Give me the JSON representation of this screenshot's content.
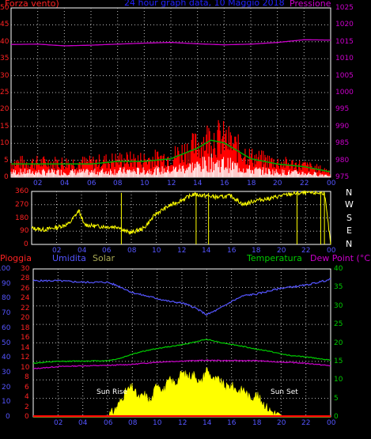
{
  "colors": {
    "bg": "#000000",
    "frame": "#ffffff",
    "grid": "#bfbfbf",
    "wind": "#ff0000",
    "wind_avg": "#00aa00",
    "wind_gust": "#ffffff",
    "pressure": "#cc00cc",
    "wind_dir": "#ffff00",
    "rain": "#ff0000",
    "humidity": "#5555ff",
    "solar": "#ffff00",
    "temperature": "#00cc00",
    "dewpoint": "#cc00cc",
    "left_axis_red": "#ff2222",
    "pressure_axis": "#cc00cc",
    "left_axis_blue": "#5555ff",
    "right_axis_green": "#00cc00",
    "x_axis": "#5555ff",
    "title": "#2222ff",
    "solar_label": "#aaaa55"
  },
  "header": {
    "left": "Forza vento)",
    "title": "24 hour graph data, 10 Maggio 2018",
    "right": "Pressione"
  },
  "lower_header": {
    "rain": "Pioggia",
    "humidity": "Umidita",
    "solar": "Solar",
    "temperature": "Temperatura",
    "dewpoint": "Dew Point (°C)"
  },
  "compass": [
    "N",
    "W",
    "S",
    "E",
    "N"
  ],
  "sun": {
    "rise": "Sun Rise",
    "set": "Sun Set"
  },
  "chart_data": [
    {
      "type": "line",
      "title": "24 hour graph data, 10 Maggio 2018",
      "x_ticks": [
        "02",
        "04",
        "06",
        "08",
        "10",
        "12",
        "14",
        "16",
        "18",
        "20",
        "22",
        "00"
      ],
      "y_left_ticks": [
        "0",
        "5",
        "10",
        "15",
        "20",
        "25",
        "30",
        "35",
        "40",
        "45",
        "50"
      ],
      "y_right_ticks": [
        "975",
        "980",
        "985",
        "990",
        "995",
        "1000",
        "1005",
        "1010",
        "1015",
        "1020",
        "1025"
      ],
      "ylim_left": [
        0,
        50
      ],
      "ylim_right": [
        975,
        1025
      ],
      "grid": true,
      "series": [
        {
          "name": "Forza vento",
          "axis": "left",
          "x": [
            0,
            2,
            4,
            6,
            8,
            10,
            12,
            13,
            14,
            15,
            16,
            17,
            18,
            20,
            22,
            24
          ],
          "values": [
            5,
            5,
            5,
            5,
            6,
            6,
            7,
            9,
            11,
            14,
            13,
            10,
            7,
            5,
            4,
            2
          ]
        },
        {
          "name": "Pressione",
          "axis": "right",
          "x": [
            0,
            2,
            4,
            6,
            8,
            10,
            12,
            14,
            16,
            18,
            20,
            22,
            24
          ],
          "values": [
            1014.2,
            1014.3,
            1013.8,
            1014.0,
            1014.3,
            1014.6,
            1014.8,
            1014.4,
            1014.1,
            1014.3,
            1014.8,
            1015.6,
            1015.5
          ]
        }
      ]
    },
    {
      "type": "line",
      "x_ticks": [
        "02",
        "04",
        "06",
        "08",
        "10",
        "12",
        "14",
        "16",
        "18",
        "20",
        "22",
        "00"
      ],
      "y_ticks": [
        "0",
        "90",
        "180",
        "270",
        "360"
      ],
      "ylim": [
        0,
        360
      ],
      "grid": true,
      "series": [
        {
          "name": "",
          "x": [
            0,
            1,
            2,
            3,
            3.8,
            4.2,
            5,
            6,
            7,
            7.5,
            8,
            9,
            10,
            11,
            12,
            13,
            14,
            15,
            16,
            17,
            18,
            19,
            20,
            21,
            22,
            23.5,
            24
          ],
          "values": [
            110,
            100,
            115,
            140,
            230,
            135,
            125,
            120,
            120,
            90,
            80,
            110,
            210,
            260,
            300,
            340,
            330,
            320,
            330,
            270,
            300,
            310,
            330,
            345,
            350,
            350,
            0
          ]
        }
      ]
    },
    {
      "type": "line",
      "x_ticks": [
        "02",
        "04",
        "06",
        "08",
        "10",
        "12",
        "14",
        "16",
        "18",
        "20",
        "22",
        "00"
      ],
      "y_left_ticks": [
        "0",
        "10",
        "20",
        "30",
        "40",
        "50",
        "60",
        "70",
        "80",
        "90",
        "100"
      ],
      "y_left2_ticks": [
        "0",
        "2",
        "4",
        "6",
        "8",
        "10",
        "12",
        "14",
        "16",
        "18",
        "20",
        "22",
        "24",
        "26",
        "28",
        "30"
      ],
      "y_right_ticks": [
        "0",
        "5",
        "10",
        "15",
        "20",
        "25",
        "30",
        "35",
        "40"
      ],
      "ylim_left": [
        0,
        100
      ],
      "ylim_left2": [
        0,
        30
      ],
      "ylim_right": [
        0,
        40
      ],
      "grid": true,
      "series": [
        {
          "name": "Umidita",
          "axis": "left",
          "x": [
            0,
            2,
            4,
            6,
            7,
            8,
            9,
            10,
            11,
            12,
            13,
            14,
            15,
            16,
            17,
            18,
            19,
            20,
            21,
            22,
            23,
            24
          ],
          "values": [
            92,
            92,
            91,
            91,
            88,
            84,
            82,
            80,
            78,
            77,
            74,
            69,
            73,
            78,
            82,
            83,
            85,
            87,
            88,
            89,
            91,
            93
          ]
        },
        {
          "name": "Temperatura",
          "axis": "right",
          "x": [
            0,
            2,
            4,
            6,
            7,
            8,
            9,
            10,
            11,
            12,
            13,
            14,
            15,
            16,
            17,
            18,
            19,
            20,
            21,
            22,
            23,
            24
          ],
          "values": [
            14.5,
            15,
            15.1,
            15.2,
            15.8,
            17,
            17.8,
            18.5,
            19,
            19.5,
            20.2,
            21,
            20.2,
            19.6,
            19,
            18.3,
            17.8,
            17,
            16.5,
            16.2,
            15.8,
            15.3
          ]
        },
        {
          "name": "Dew Point",
          "axis": "right",
          "x": [
            0,
            2,
            4,
            6,
            8,
            10,
            12,
            14,
            16,
            18,
            20,
            22,
            24
          ],
          "values": [
            13,
            13.6,
            13.8,
            13.9,
            14.2,
            14.8,
            15.1,
            15.3,
            15.2,
            15.2,
            14.8,
            14.5,
            13.8
          ]
        },
        {
          "name": "Solar",
          "axis": "right",
          "x": [
            0,
            5.8,
            6.5,
            7,
            7.5,
            8,
            8.5,
            9,
            9.5,
            10,
            10.5,
            11,
            11.5,
            12,
            12.5,
            13,
            13.5,
            14,
            14.5,
            15,
            15.5,
            16,
            16.5,
            17,
            17.5,
            18,
            18.5,
            19,
            19.5,
            20,
            24
          ],
          "values": [
            0,
            0,
            1.5,
            4,
            7,
            8,
            5,
            6,
            4,
            9.5,
            7,
            10,
            9,
            12,
            11,
            11.5,
            9,
            13,
            10,
            10,
            8,
            8.5,
            7,
            7.5,
            5,
            6,
            4,
            2,
            1,
            0,
            0
          ]
        },
        {
          "name": "Pioggia",
          "axis": "left",
          "x": [
            0,
            24
          ],
          "values": [
            0,
            0
          ]
        }
      ]
    }
  ]
}
